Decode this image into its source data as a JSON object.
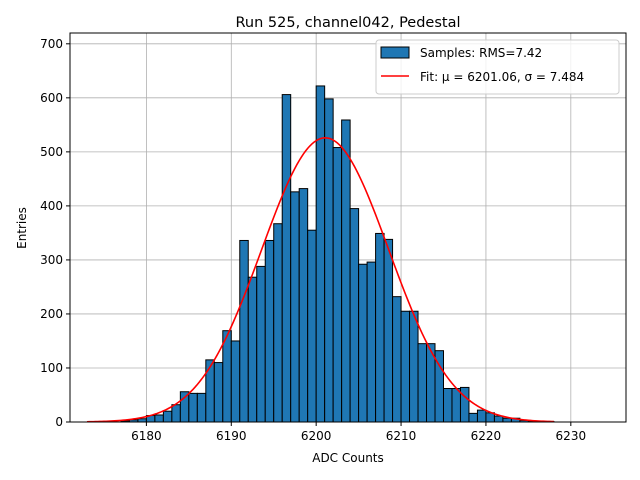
{
  "chart_data": {
    "type": "bar",
    "title": "Run 525, channel042, Pedestal",
    "xlabel": "ADC Counts",
    "ylabel": "Entries",
    "xlim": [
      6171.0,
      6236.5
    ],
    "ylim": [
      0,
      720
    ],
    "xticks": [
      6180,
      6190,
      6200,
      6210,
      6220,
      6230
    ],
    "yticks": [
      0,
      100,
      200,
      300,
      400,
      500,
      600,
      700
    ],
    "grid": true,
    "legend_position": "top-right",
    "legend": {
      "histogram": "Samples: RMS=7.42",
      "fit": "Fit: μ = 6201.06, σ = 7.484"
    },
    "colors": {
      "bar_fill": "#1f77b4",
      "bar_edge": "#000000",
      "fit_line": "#ff0000",
      "grid": "#b0b0b0"
    },
    "histogram": {
      "bin_width": 1,
      "bin_start": 6177,
      "values": [
        2,
        4,
        6,
        12,
        13,
        20,
        32,
        56,
        53,
        53,
        115,
        110,
        169,
        150,
        336,
        268,
        288,
        336,
        367,
        606,
        426,
        432,
        355,
        622,
        598,
        508,
        559,
        395,
        292,
        296,
        349,
        338,
        232,
        205,
        205,
        145,
        145,
        132,
        62,
        62,
        64,
        16,
        22,
        17,
        11,
        7,
        7,
        3,
        2,
        1,
        1
      ]
    },
    "fit": {
      "mu": 6201.06,
      "sigma": 7.484,
      "amplitude": 526,
      "x_range": [
        6173,
        6228
      ]
    }
  }
}
